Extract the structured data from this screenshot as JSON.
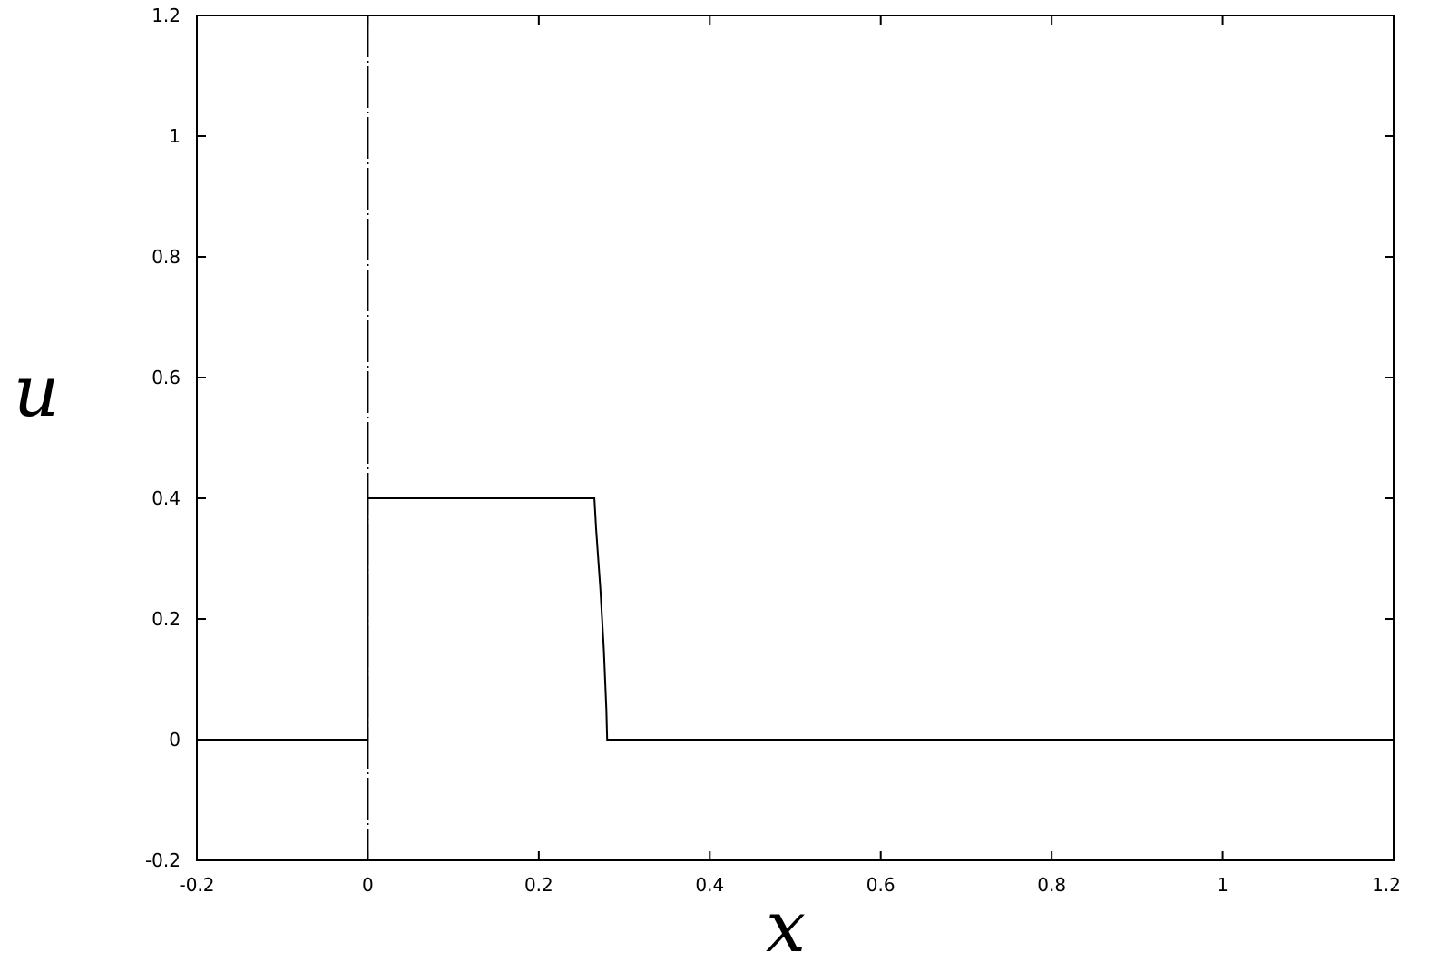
{
  "chart_data": {
    "type": "line",
    "title": "",
    "xlabel": "x",
    "ylabel": "u",
    "xlim": [
      -0.2,
      1.2
    ],
    "ylim": [
      -0.2,
      1.2
    ],
    "x_ticks": [
      "-0.2",
      "0",
      "0.2",
      "0.4",
      "0.6",
      "0.8",
      "1",
      "1.2"
    ],
    "y_ticks": [
      "-0.2",
      "0",
      "0.2",
      "0.4",
      "0.6",
      "0.8",
      "1",
      "1.2"
    ],
    "grid": false,
    "legend": "none",
    "series": [
      {
        "color": "#000000",
        "points": [
          [
            -0.2,
            0
          ],
          [
            0,
            0
          ],
          [
            0,
            0.4
          ],
          [
            0.265,
            0.4
          ],
          [
            0.267,
            0.35
          ],
          [
            0.272,
            0.25
          ],
          [
            0.276,
            0.15
          ],
          [
            0.279,
            0.05
          ],
          [
            0.28,
            0
          ],
          [
            1.2,
            0
          ]
        ]
      }
    ],
    "reference_lines": [
      {
        "orientation": "vertical",
        "x": 0,
        "style": "dash-dot",
        "color": "#000000"
      }
    ]
  }
}
